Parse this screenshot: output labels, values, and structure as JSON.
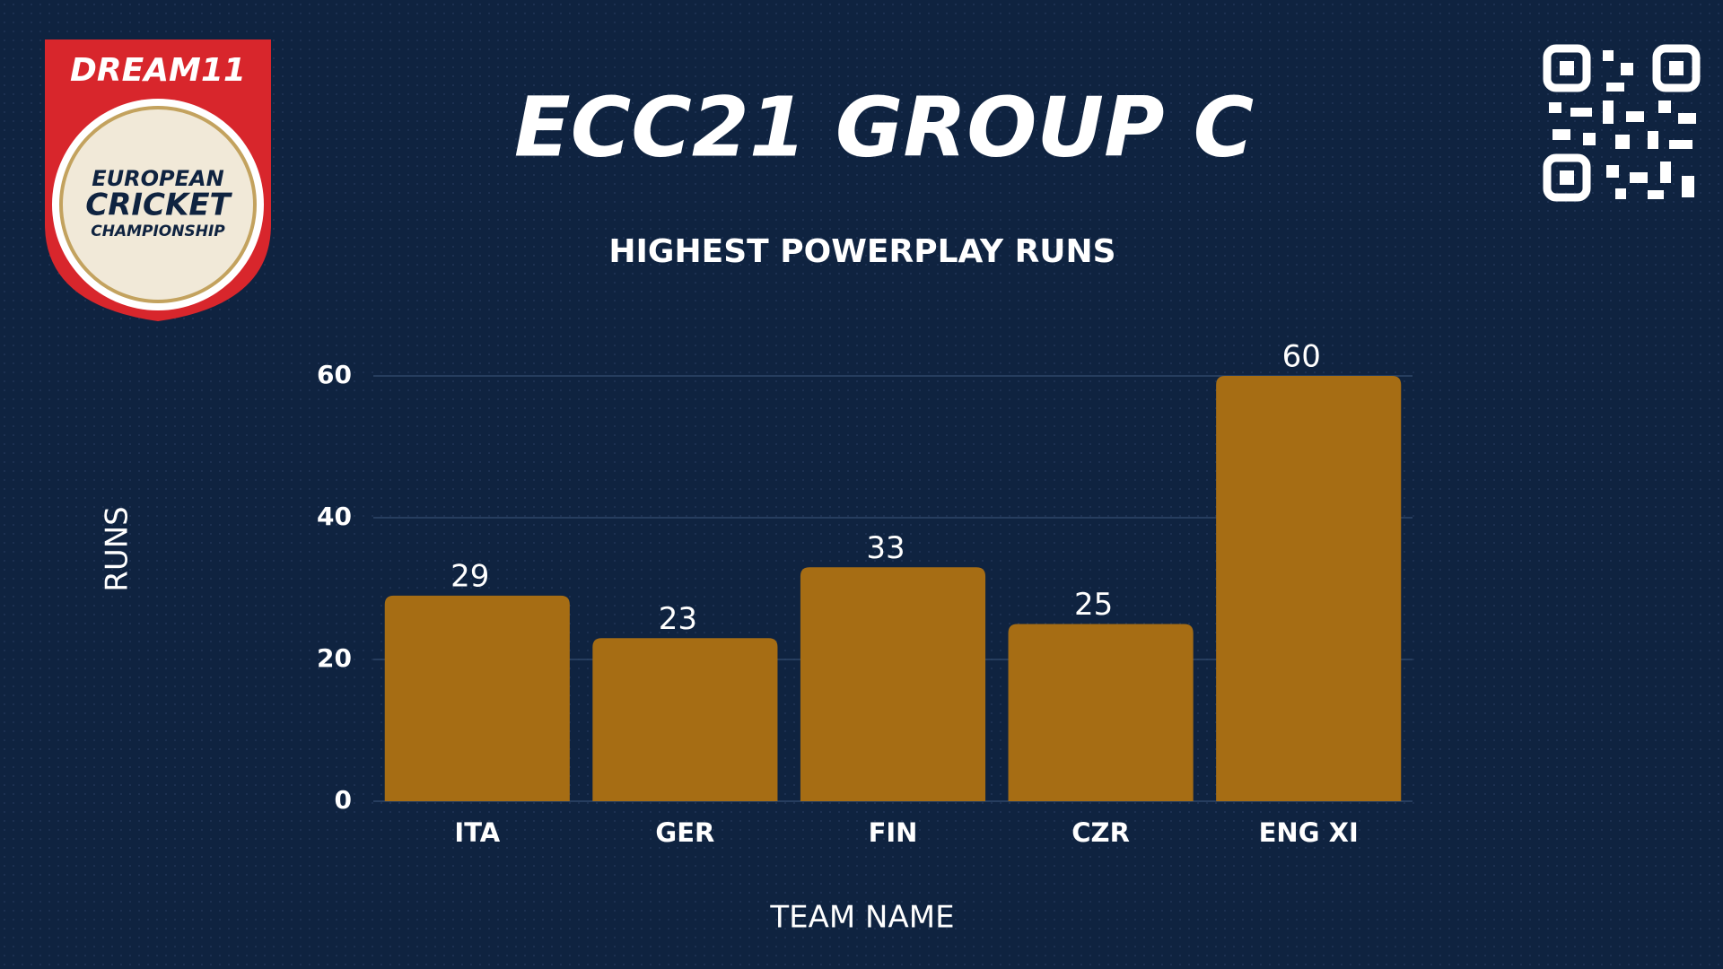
{
  "logo": {
    "brand": "DREAM11",
    "line1": "EUROPEAN",
    "line2": "CRICKET",
    "line3": "CHAMPIONSHIP"
  },
  "chart_data": {
    "type": "bar",
    "title": "ECC21 GROUP C",
    "subtitle": "HIGHEST POWERPLAY RUNS",
    "x_label": "TEAM NAME",
    "y_label": "RUNS",
    "categories": [
      "ITA",
      "GER",
      "FIN",
      "CZR",
      "ENG XI"
    ],
    "values": [
      29,
      23,
      33,
      25,
      60
    ],
    "color": "#a66d14",
    "ylim": [
      0,
      60
    ],
    "yticks": [
      0,
      20,
      40,
      60
    ],
    "grid": true
  }
}
